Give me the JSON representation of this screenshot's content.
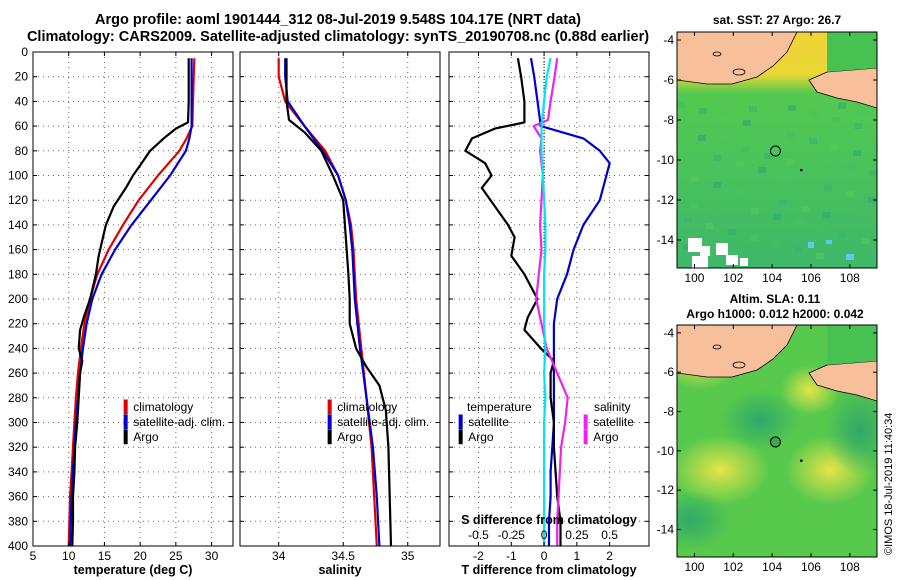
{
  "header": {
    "title_line1": "Argo profile: aoml 1901444_312 08-Jul-2019 9.548S 104.17E (NRT data)",
    "title_line2": "Climatology: CARS2009. Satellite-adjusted climatology: synTS_20190708.nc (0.88d earlier)"
  },
  "colors": {
    "climatology": "#e00000",
    "satellite": "#0000cc",
    "argo": "#000000",
    "satellite_sal": "#ee22ee",
    "satellite_temp": "#00e5ee",
    "land": "#f7bf9a"
  },
  "chart_data": [
    {
      "type": "line",
      "name": "temperature",
      "xlabel": "temperature (deg C)",
      "ylabel": "",
      "xlim": [
        5,
        33
      ],
      "ylim": [
        400,
        0
      ],
      "xticks": [
        "5",
        "10",
        "15",
        "20",
        "25",
        "30"
      ],
      "xtick_values": [
        5,
        10,
        15,
        20,
        25,
        30
      ],
      "yticks": [
        "0",
        "20",
        "40",
        "60",
        "80",
        "100",
        "120",
        "140",
        "160",
        "180",
        "200",
        "220",
        "240",
        "260",
        "280",
        "300",
        "320",
        "340",
        "360",
        "380",
        "400"
      ],
      "ytick_values": [
        0,
        20,
        40,
        60,
        80,
        100,
        120,
        140,
        160,
        180,
        200,
        220,
        240,
        260,
        280,
        300,
        320,
        340,
        360,
        380,
        400
      ],
      "legend": [
        "climatology",
        "satellite-adj. clim.",
        "Argo"
      ],
      "legend_position": "lower-right",
      "series": [
        {
          "name": "climatology",
          "color": "#e00000",
          "depth": [
            5,
            20,
            40,
            60,
            70,
            80,
            100,
            120,
            140,
            160,
            180,
            200,
            220,
            240,
            260,
            280,
            300,
            320,
            340,
            360,
            380,
            400
          ],
          "values": [
            27.6,
            27.5,
            27.4,
            27.3,
            26.5,
            25.5,
            22.5,
            19.8,
            17.6,
            15.6,
            14.0,
            13.0,
            12.2,
            11.7,
            11.3,
            11.0,
            10.8,
            10.6,
            10.4,
            10.2,
            10.1,
            10.0
          ]
        },
        {
          "name": "satellite-adj. clim.",
          "color": "#0000cc",
          "depth": [
            5,
            20,
            40,
            60,
            70,
            80,
            100,
            120,
            140,
            160,
            180,
            200,
            220,
            240,
            260,
            280,
            300,
            320,
            340,
            360,
            380,
            400
          ],
          "values": [
            27.2,
            27.2,
            27.2,
            27.2,
            26.9,
            26.4,
            24.2,
            21.5,
            18.8,
            16.5,
            14.6,
            13.3,
            12.5,
            12.0,
            11.6,
            11.3,
            11.0,
            10.8,
            10.6,
            10.4,
            10.3,
            10.2
          ]
        },
        {
          "name": "Argo",
          "color": "#000000",
          "depth": [
            5,
            20,
            40,
            57,
            62,
            70,
            80,
            90,
            100,
            110,
            125,
            140,
            150,
            165,
            180,
            200,
            215,
            225,
            240,
            250,
            260,
            280,
            300,
            320,
            340,
            360,
            380,
            400
          ],
          "values": [
            26.8,
            26.8,
            26.8,
            26.7,
            25.0,
            23.3,
            21.4,
            20.2,
            19.0,
            18.0,
            16.3,
            15.2,
            14.8,
            14.2,
            13.8,
            13.0,
            12.1,
            11.6,
            11.4,
            11.9,
            11.6,
            11.4,
            11.2,
            10.9,
            10.8,
            10.6,
            10.6,
            10.5
          ]
        }
      ]
    },
    {
      "type": "line",
      "name": "salinity",
      "xlabel": "salinity",
      "xlim": [
        33.7,
        35.25
      ],
      "ylim": [
        400,
        0
      ],
      "xticks": [
        "34",
        "34.5",
        "35"
      ],
      "xtick_values": [
        34,
        34.5,
        35
      ],
      "legend": [
        "climatology",
        "satellite-adj. clim.",
        "Argo"
      ],
      "legend_position": "lower-right",
      "series": [
        {
          "name": "climatology",
          "color": "#e00000",
          "depth": [
            5,
            20,
            40,
            60,
            80,
            100,
            120,
            140,
            160,
            200,
            240,
            280,
            320,
            360,
            400
          ],
          "values": [
            34.0,
            34.0,
            34.05,
            34.2,
            34.36,
            34.46,
            34.52,
            34.56,
            34.58,
            34.6,
            34.64,
            34.68,
            34.72,
            34.74,
            34.76
          ]
        },
        {
          "name": "satellite-adj. clim.",
          "color": "#0000cc",
          "depth": [
            5,
            20,
            40,
            60,
            80,
            100,
            120,
            140,
            160,
            200,
            240,
            280,
            320,
            360,
            400
          ],
          "values": [
            34.05,
            34.05,
            34.07,
            34.2,
            34.34,
            34.46,
            34.52,
            34.55,
            34.57,
            34.59,
            34.63,
            34.68,
            34.73,
            34.76,
            34.78
          ]
        },
        {
          "name": "Argo",
          "color": "#000000",
          "depth": [
            5,
            20,
            40,
            55,
            65,
            80,
            100,
            120,
            150,
            180,
            200,
            220,
            240,
            255,
            270,
            290,
            320,
            360,
            400
          ],
          "values": [
            34.06,
            34.06,
            34.06,
            34.08,
            34.2,
            34.33,
            34.42,
            34.5,
            34.52,
            34.54,
            34.55,
            34.55,
            34.6,
            34.68,
            34.78,
            34.83,
            34.85,
            34.86,
            34.87
          ]
        }
      ]
    },
    {
      "type": "line",
      "name": "differences",
      "xlabel": "T difference from climatology",
      "top_xlabel": "S difference from climatology",
      "xlim": [
        -2.9,
        3.2
      ],
      "ylim": [
        400,
        0
      ],
      "xticks": [
        "-2",
        "-1",
        "0",
        "1",
        "2"
      ],
      "xtick_values": [
        -2,
        -1,
        0,
        1,
        2
      ],
      "s_xticks": [
        "-0.5",
        "-0.25",
        "0",
        "0.25",
        "0.5"
      ],
      "s_xtick_values": [
        -0.5,
        -0.25,
        0,
        0.25,
        0.5
      ],
      "legend_temperature": [
        "temperature",
        "satellite",
        "Argo"
      ],
      "legend_salinity": [
        "salinity",
        "satellite",
        "Argo"
      ],
      "series": [
        {
          "name": "T satellite",
          "color": "#0000cc",
          "unit": "T",
          "depth": [
            5,
            20,
            40,
            60,
            70,
            80,
            90,
            100,
            110,
            120,
            140,
            160,
            180,
            200,
            220,
            240,
            260,
            280,
            300,
            320,
            340,
            360,
            380,
            400
          ],
          "values": [
            -0.4,
            -0.3,
            -0.2,
            -0.1,
            1.2,
            1.7,
            2.0,
            1.9,
            1.8,
            1.7,
            1.2,
            0.9,
            0.7,
            0.4,
            0.3,
            0.3,
            0.3,
            0.3,
            0.3,
            0.25,
            0.2,
            0.2,
            0.15,
            0.15
          ]
        },
        {
          "name": "T Argo",
          "color": "#000000",
          "unit": "T",
          "depth": [
            5,
            20,
            40,
            57,
            62,
            70,
            80,
            90,
            100,
            110,
            125,
            140,
            150,
            165,
            180,
            200,
            215,
            225,
            240,
            250,
            260,
            280,
            300,
            320,
            340,
            360,
            380,
            400
          ],
          "values": [
            -0.8,
            -0.7,
            -0.6,
            -0.6,
            -1.5,
            -2.2,
            -2.4,
            -1.8,
            -1.6,
            -1.9,
            -1.5,
            -1.1,
            -0.9,
            -1.0,
            -0.6,
            -0.2,
            -0.5,
            -0.6,
            -0.1,
            0.3,
            0.2,
            0.2,
            0.3,
            0.3,
            0.35,
            0.4,
            0.5,
            0.5
          ]
        },
        {
          "name": "S satellite",
          "color": "#ee22ee",
          "unit": "S",
          "depth": [
            5,
            20,
            40,
            55,
            60,
            70,
            80,
            100,
            120,
            140,
            160,
            180,
            200,
            220,
            240,
            260,
            280,
            300,
            320,
            340,
            360,
            380,
            400
          ],
          "values": [
            0.1,
            0.08,
            0.05,
            0.03,
            -0.08,
            -0.02,
            -0.03,
            -0.01,
            -0.02,
            -0.03,
            -0.02,
            -0.04,
            -0.06,
            -0.02,
            0.02,
            0.1,
            0.18,
            0.16,
            0.13,
            0.12,
            0.11,
            0.1,
            0.1
          ]
        },
        {
          "name": "S satellite (T)",
          "color": "#00e5ee",
          "unit": "S",
          "depth": [
            5,
            20,
            40,
            60,
            80,
            100,
            120,
            140,
            160,
            180,
            200,
            220,
            240,
            260,
            280,
            300,
            320,
            340,
            360,
            380,
            400
          ],
          "values": [
            0.05,
            0.02,
            0.0,
            -0.02,
            -0.02,
            -0.01,
            0.0,
            0.01,
            0.01,
            0.0,
            0.0,
            0.0,
            0.01,
            0.0,
            0.01,
            0.0,
            0.0,
            0.0,
            0.0,
            0.0,
            0.0
          ]
        }
      ]
    },
    {
      "type": "heatmap",
      "name": "sst-map",
      "title": "sat. SST: 27 Argo: 26.7",
      "xticks": [
        "100",
        "102",
        "104",
        "106",
        "108"
      ],
      "xtick_values": [
        100,
        102,
        104,
        106,
        108
      ],
      "yticks": [
        "-4",
        "-6",
        "-8",
        "-10",
        "-12",
        "-14"
      ],
      "ytick_values": [
        -4,
        -6,
        -8,
        -10,
        -12,
        -14
      ],
      "xlim": [
        99.1,
        109.4
      ],
      "ylim": [
        -15.4,
        -3.6
      ],
      "argo_position": [
        104.17,
        -9.548
      ]
    },
    {
      "type": "heatmap",
      "name": "sla-map",
      "title_line1": "Altim. SLA: 0.11",
      "title_line2": "Argo h1000: 0.012 h2000: 0.042",
      "xticks": [
        "100",
        "102",
        "104",
        "106",
        "108"
      ],
      "xtick_values": [
        100,
        102,
        104,
        106,
        108
      ],
      "yticks": [
        "-4",
        "-6",
        "-8",
        "-10",
        "-12",
        "-14"
      ],
      "ytick_values": [
        -4,
        -6,
        -8,
        -10,
        -12,
        -14
      ],
      "xlim": [
        99.1,
        109.4
      ],
      "ylim": [
        -15.4,
        -3.6
      ],
      "argo_position": [
        104.17,
        -9.548
      ]
    }
  ],
  "stamp": "©IMOS 18-Jul-2019 11:40:34"
}
